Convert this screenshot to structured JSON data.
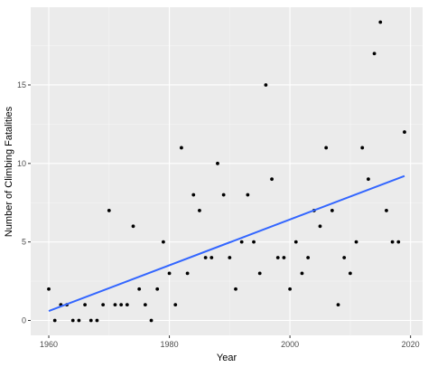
{
  "chart_data": {
    "type": "scatter",
    "xlabel": "Year",
    "ylabel": "Number of Climbing Fatalities",
    "xlim": [
      1957,
      2022
    ],
    "ylim": [
      -0.95,
      19.95
    ],
    "x_ticks": [
      1960,
      1980,
      2000,
      2020
    ],
    "x_tick_labels": [
      "1960",
      "1980",
      "2000",
      "2020"
    ],
    "y_ticks": [
      0,
      5,
      10,
      15
    ],
    "y_tick_labels": [
      "0",
      "5",
      "10",
      "15"
    ],
    "grid": true,
    "legend": "none",
    "points": [
      {
        "x": 1960,
        "y": 2
      },
      {
        "x": 1961,
        "y": 0
      },
      {
        "x": 1962,
        "y": 1
      },
      {
        "x": 1963,
        "y": 1
      },
      {
        "x": 1964,
        "y": 0
      },
      {
        "x": 1965,
        "y": 0
      },
      {
        "x": 1966,
        "y": 1
      },
      {
        "x": 1967,
        "y": 0
      },
      {
        "x": 1968,
        "y": 0
      },
      {
        "x": 1969,
        "y": 1
      },
      {
        "x": 1970,
        "y": 7
      },
      {
        "x": 1971,
        "y": 1
      },
      {
        "x": 1972,
        "y": 1
      },
      {
        "x": 1973,
        "y": 1
      },
      {
        "x": 1974,
        "y": 6
      },
      {
        "x": 1975,
        "y": 2
      },
      {
        "x": 1976,
        "y": 1
      },
      {
        "x": 1977,
        "y": 0
      },
      {
        "x": 1978,
        "y": 2
      },
      {
        "x": 1979,
        "y": 5
      },
      {
        "x": 1980,
        "y": 3
      },
      {
        "x": 1981,
        "y": 1
      },
      {
        "x": 1982,
        "y": 11
      },
      {
        "x": 1983,
        "y": 3
      },
      {
        "x": 1984,
        "y": 8
      },
      {
        "x": 1985,
        "y": 7
      },
      {
        "x": 1986,
        "y": 4
      },
      {
        "x": 1987,
        "y": 4
      },
      {
        "x": 1988,
        "y": 10
      },
      {
        "x": 1989,
        "y": 8
      },
      {
        "x": 1990,
        "y": 4
      },
      {
        "x": 1991,
        "y": 2
      },
      {
        "x": 1992,
        "y": 5
      },
      {
        "x": 1993,
        "y": 8
      },
      {
        "x": 1994,
        "y": 5
      },
      {
        "x": 1995,
        "y": 3
      },
      {
        "x": 1996,
        "y": 15
      },
      {
        "x": 1997,
        "y": 9
      },
      {
        "x": 1998,
        "y": 4
      },
      {
        "x": 1999,
        "y": 4
      },
      {
        "x": 2000,
        "y": 2
      },
      {
        "x": 2001,
        "y": 5
      },
      {
        "x": 2002,
        "y": 3
      },
      {
        "x": 2003,
        "y": 4
      },
      {
        "x": 2004,
        "y": 7
      },
      {
        "x": 2005,
        "y": 6
      },
      {
        "x": 2006,
        "y": 11
      },
      {
        "x": 2007,
        "y": 7
      },
      {
        "x": 2008,
        "y": 1
      },
      {
        "x": 2009,
        "y": 4
      },
      {
        "x": 2010,
        "y": 3
      },
      {
        "x": 2011,
        "y": 5
      },
      {
        "x": 2012,
        "y": 11
      },
      {
        "x": 2013,
        "y": 9
      },
      {
        "x": 2014,
        "y": 17
      },
      {
        "x": 2015,
        "y": 19
      },
      {
        "x": 2016,
        "y": 7
      },
      {
        "x": 2017,
        "y": 5
      },
      {
        "x": 2018,
        "y": 5
      },
      {
        "x": 2019,
        "y": 12
      }
    ],
    "trend_line": {
      "x": [
        1960,
        2019
      ],
      "y": [
        0.6,
        9.2
      ]
    },
    "colors": {
      "panel_background": "#ebebeb",
      "grid_major": "#ffffff",
      "grid_minor": "#f5f5f5",
      "point": "#000000",
      "trend_line": "#3366ff",
      "tick_label": "#4d4d4d",
      "tick_mark": "#333333"
    }
  }
}
